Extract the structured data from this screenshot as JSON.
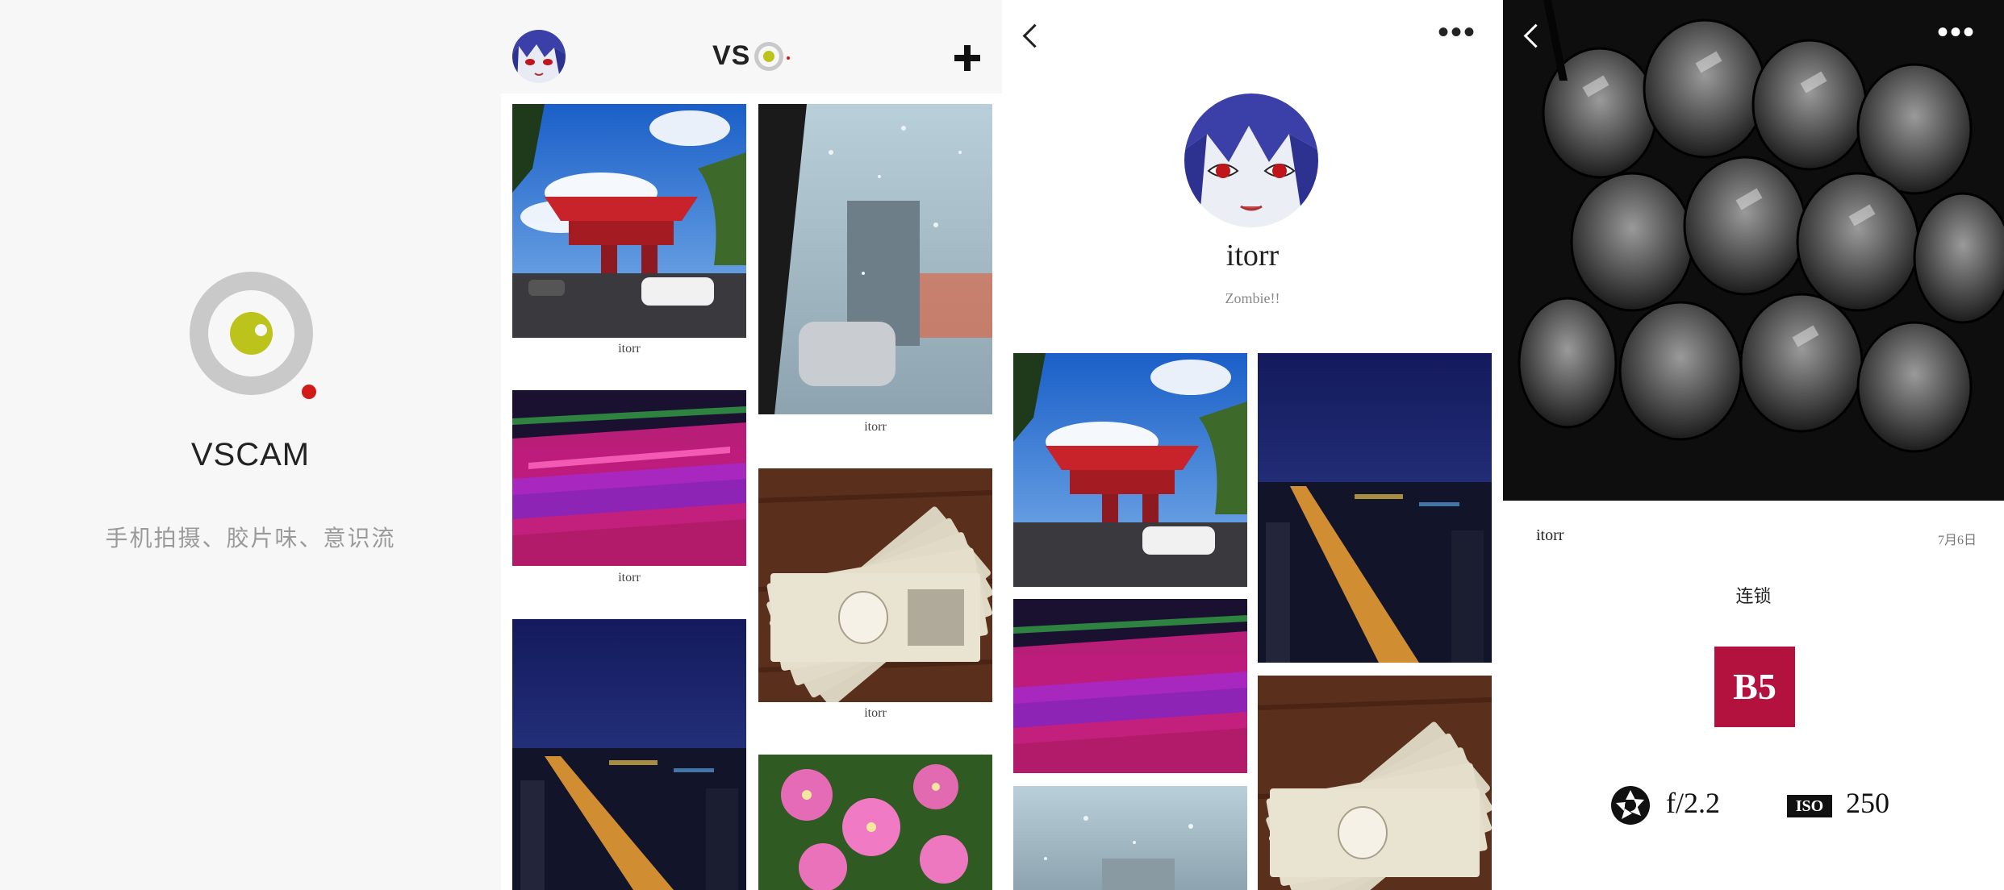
{
  "colors": {
    "accent_lime": "#bcc31a",
    "accent_red": "#d11b1b",
    "filter_badge": "#b3123e",
    "logo_ring": "#c9c9c9"
  },
  "splash": {
    "app_name": "VSCAM",
    "tagline": "手机拍摄、胶片味、意识流"
  },
  "feed": {
    "header_logo_text": "VS",
    "add_icon": "plus-icon",
    "left_column": [
      {
        "photo": "red-pavilion-photo",
        "caption": "itorr"
      },
      {
        "photo": "neon-blur-photo",
        "caption": "itorr"
      },
      {
        "photo": "night-city-photo",
        "caption": ""
      }
    ],
    "right_column": [
      {
        "photo": "rainy-window-photo",
        "caption": "itorr"
      },
      {
        "photo": "yen-notes-photo",
        "caption": "itorr"
      },
      {
        "photo": "pink-flowers-photo",
        "caption": ""
      }
    ]
  },
  "profile": {
    "back_icon": "chevron-left-icon",
    "more_icon": "more-dots-icon",
    "username": "itorr",
    "bio": "Zombie!!",
    "grid": [
      "red-pavilion-photo",
      "night-city-photo",
      "neon-blur-photo",
      "yen-notes-photo",
      "rainy-window-photo"
    ]
  },
  "detail": {
    "back_icon": "chevron-left-icon",
    "more_icon": "more-dots-icon",
    "username": "itorr",
    "date": "7月6日",
    "caption": "连锁",
    "filter": "B5",
    "aperture": "f/2.2",
    "iso_label": "ISO",
    "iso": "250"
  }
}
